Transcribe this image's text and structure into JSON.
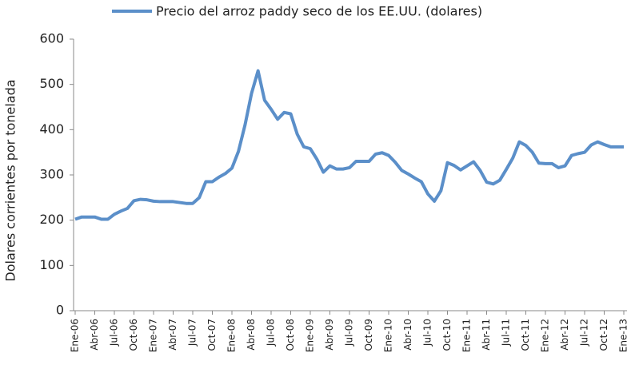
{
  "chart_data": {
    "type": "line",
    "y_label": "Dolares corrientes por tonelada",
    "categories": [
      "Ene-06",
      null,
      null,
      "Abr-06",
      null,
      null,
      "Jul-06",
      null,
      null,
      "Oct-06",
      null,
      null,
      "Ene-07",
      null,
      null,
      "Abr-07",
      null,
      null,
      "Jul-07",
      null,
      null,
      "Oct-07",
      null,
      null,
      "Ene-08",
      null,
      null,
      "Abr-08",
      null,
      null,
      "Jul-08",
      null,
      null,
      "Oct-08",
      null,
      null,
      "Ene-09",
      null,
      null,
      "Abr-09",
      null,
      null,
      "Jul-09",
      null,
      null,
      "Oct-09",
      null,
      null,
      "Ene-10",
      null,
      null,
      "Abr-10",
      null,
      null,
      "Jul-10",
      null,
      null,
      "Oct-10",
      null,
      null,
      "Ene-11",
      null,
      null,
      "Abr-11",
      null,
      null,
      "Jul-11",
      null,
      null,
      "Oct-11",
      null,
      null,
      "Ene-12",
      null,
      null,
      "Abr-12",
      null,
      null,
      "Jul-12",
      null,
      null,
      "Oct-12",
      null,
      null,
      "Ene-13"
    ],
    "series": [
      {
        "name": "Precio del arroz paddy seco de los EE.UU. (dolares)",
        "color": "#5b8fc9",
        "values": [
          202,
          207,
          207,
          207,
          202,
          202,
          213,
          220,
          226,
          243,
          246,
          245,
          242,
          241,
          241,
          241,
          239,
          237,
          237,
          250,
          285,
          285,
          295,
          303,
          315,
          352,
          410,
          480,
          530,
          465,
          445,
          423,
          438,
          435,
          390,
          362,
          358,
          335,
          306,
          320,
          313,
          313,
          316,
          330,
          330,
          330,
          346,
          349,
          343,
          328,
          310,
          302,
          293,
          285,
          258,
          242,
          265,
          327,
          321,
          311,
          320,
          329,
          310,
          284,
          280,
          288,
          312,
          337,
          373,
          365,
          350,
          326,
          325,
          325,
          316,
          320,
          343,
          347,
          350,
          366,
          373,
          367,
          362,
          362,
          362
        ]
      }
    ],
    "ylim": [
      0,
      600
    ],
    "yticks": [
      0,
      100,
      200,
      300,
      400,
      500,
      600
    ],
    "grid": false,
    "legend": "top"
  }
}
